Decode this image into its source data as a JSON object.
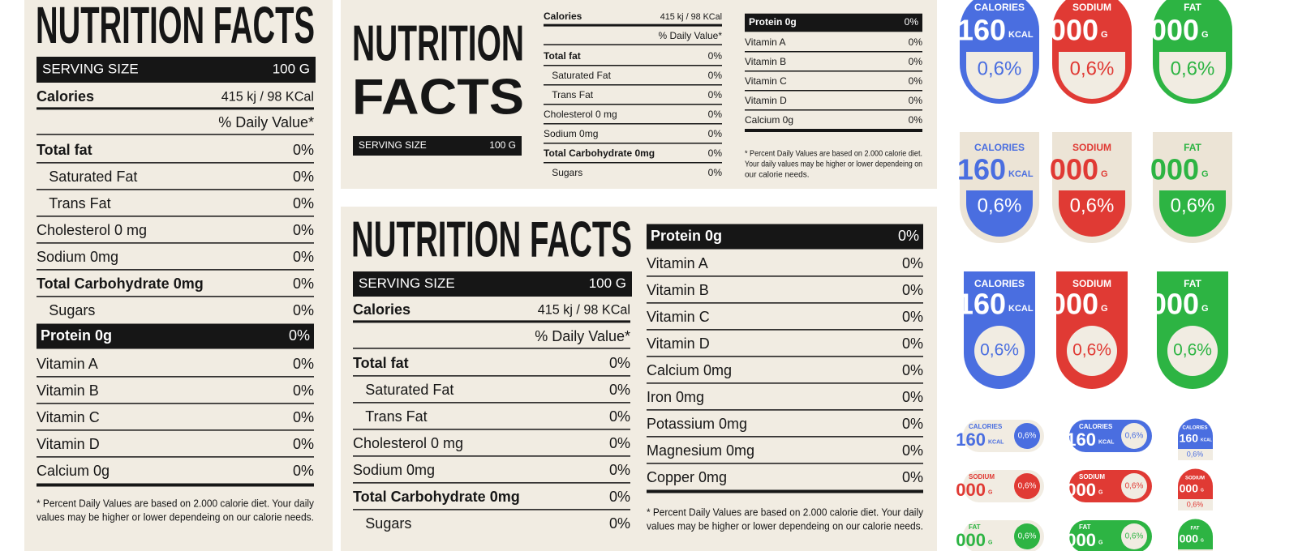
{
  "labels": [
    {
      "title": "NUTRITION FACTS",
      "serving": {
        "label": "SERVING SIZE",
        "value": "100 G"
      },
      "calories": {
        "label": "Calories",
        "value": "415 kj / 98 KCal"
      },
      "daily_value": "% Daily Value*",
      "rows": [
        {
          "label": "Total fat",
          "value": "0%"
        },
        {
          "label": "Saturated Fat",
          "value": "0%"
        },
        {
          "label": "Trans Fat",
          "value": "0%"
        },
        {
          "label": "Cholesterol 0 mg",
          "value": "0%"
        },
        {
          "label": "Sodium 0mg",
          "value": "0%"
        },
        {
          "label": "Total Carbohydrate 0mg",
          "value": "0%"
        },
        {
          "label": "Sugars",
          "value": "0%"
        }
      ],
      "protein": {
        "label": "Protein 0g",
        "value": "0%"
      },
      "vitamins": [
        {
          "label": "Vitamin A",
          "value": "0%"
        },
        {
          "label": "Vitamin B",
          "value": "0%"
        },
        {
          "label": "Vitamin C",
          "value": "0%"
        },
        {
          "label": "Vitamin D",
          "value": "0%"
        },
        {
          "label": "Calcium 0g",
          "value": "0%"
        }
      ],
      "footnote": [
        "* Percent Daily Values are based on 2.000 calorie diet. Your daily",
        "values may be higher or lower dependeing on our calorie needs."
      ]
    },
    {
      "title_lines": [
        "NUTRITION",
        "FACTS"
      ],
      "serving": {
        "label": "SERVING SIZE",
        "value": "100 G"
      },
      "calories": {
        "label": "Calories",
        "value": "415 kj / 98 KCal"
      },
      "daily_value": "% Daily Value*",
      "rows": [
        {
          "label": "Total fat",
          "value": "0%"
        },
        {
          "label": "Saturated Fat",
          "value": "0%"
        },
        {
          "label": "Trans Fat",
          "value": "0%"
        },
        {
          "label": "Cholesterol 0 mg",
          "value": "0%"
        },
        {
          "label": "Sodium 0mg",
          "value": "0%"
        },
        {
          "label": "Total Carbohydrate 0mg",
          "value": "0%"
        },
        {
          "label": "Sugars",
          "value": "0%"
        }
      ],
      "protein": {
        "label": "Protein 0g",
        "value": "0%"
      },
      "vitamins": [
        {
          "label": "Vitamin A",
          "value": "0%"
        },
        {
          "label": "Vitamin B",
          "value": "0%"
        },
        {
          "label": "Vitamin C",
          "value": "0%"
        },
        {
          "label": "Vitamin D",
          "value": "0%"
        },
        {
          "label": "Calcium 0g",
          "value": "0%"
        }
      ],
      "footnote": [
        "* Percent Daily Values are based on 2.000 calorie diet.",
        "Your daily values may be higher or lower dependeing on",
        "our calorie needs."
      ]
    },
    {
      "title": "NUTRITION FACTS",
      "serving": {
        "label": "SERVING SIZE",
        "value": "100 G"
      },
      "calories": {
        "label": "Calories",
        "value": "415 kj / 98 KCal"
      },
      "daily_value": "% Daily Value*",
      "rows": [
        {
          "label": "Total fat",
          "value": "0%"
        },
        {
          "label": "Saturated Fat",
          "value": "0%"
        },
        {
          "label": "Trans Fat",
          "value": "0%"
        },
        {
          "label": "Cholesterol 0 mg",
          "value": "0%"
        },
        {
          "label": "Sodium 0mg",
          "value": "0%"
        },
        {
          "label": "Total Carbohydrate 0mg",
          "value": "0%"
        },
        {
          "label": "Sugars",
          "value": "0%"
        }
      ],
      "protein": {
        "label": "Protein 0g",
        "value": "0%"
      },
      "vitamins": [
        {
          "label": "Vitamin A",
          "value": "0%"
        },
        {
          "label": "Vitamin B",
          "value": "0%"
        },
        {
          "label": "Vitamin C",
          "value": "0%"
        },
        {
          "label": "Vitamin D",
          "value": "0%"
        },
        {
          "label": "Calcium 0mg",
          "value": "0%"
        },
        {
          "label": "Iron 0mg",
          "value": "0%"
        },
        {
          "label": "Potassium 0mg",
          "value": "0%"
        },
        {
          "label": "Magnesium 0mg",
          "value": "0%"
        },
        {
          "label": "Copper 0mg",
          "value": "0%"
        }
      ],
      "footnote": [
        "* Percent Daily Values are based on 2.000 calorie diet. Your daily",
        "values may be higher or lower dependeing on our calorie needs."
      ]
    }
  ],
  "badges": [
    {
      "label": "CALORIES",
      "value": "160",
      "unit": "KCAL",
      "percent": "0,6%",
      "color": "#4a6ee0"
    },
    {
      "label": "SODIUM",
      "value": "000",
      "unit": "G",
      "percent": "0,6%",
      "color": "#e03a34"
    },
    {
      "label": "FAT",
      "value": "000",
      "unit": "G",
      "percent": "0,6%",
      "color": "#2db443"
    }
  ]
}
